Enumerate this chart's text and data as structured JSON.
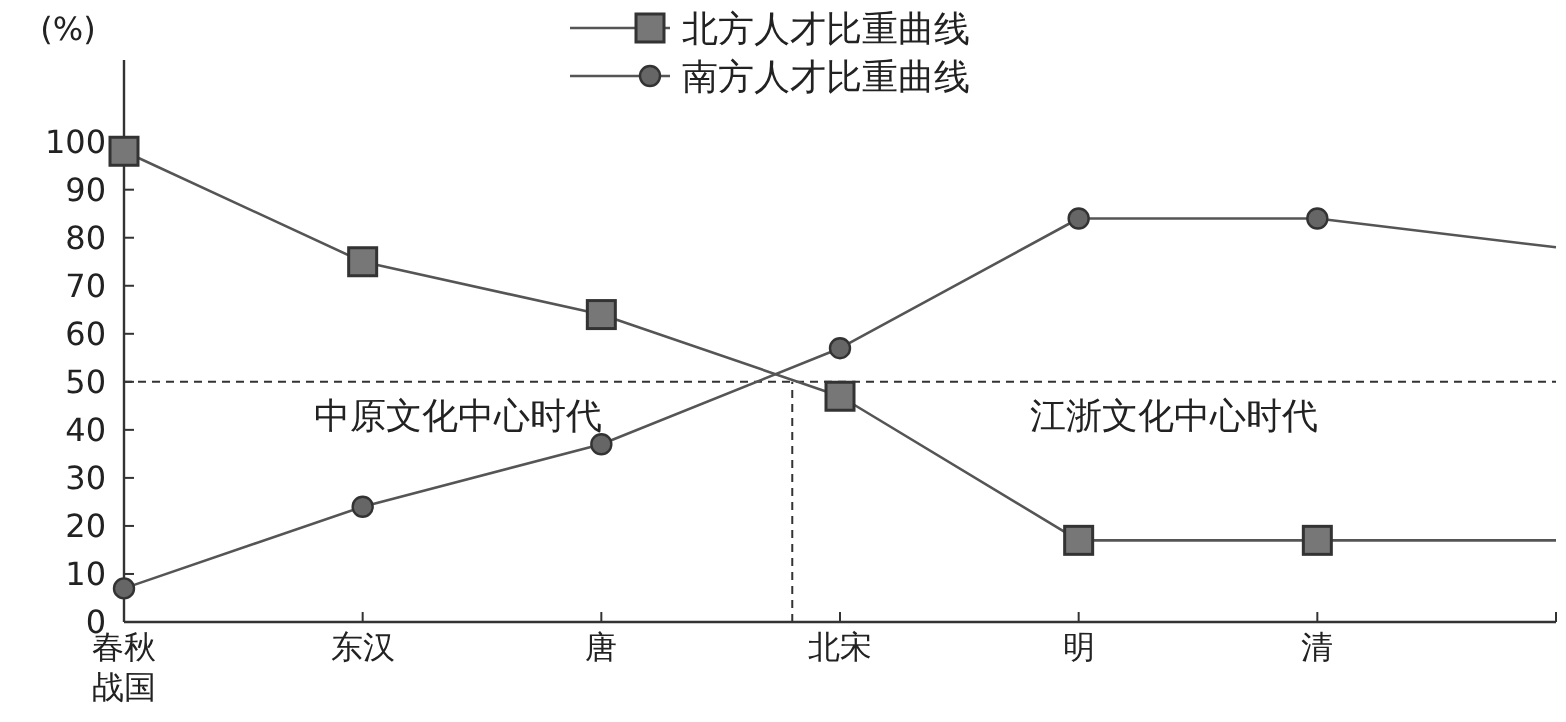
{
  "chart_data": {
    "type": "line",
    "ylabel": "(%)",
    "categories": [
      "春秋战国",
      "东汉",
      "唐",
      "北宋",
      "明",
      "清",
      null
    ],
    "ylim": [
      0,
      117
    ],
    "yticks": [
      0,
      10,
      20,
      30,
      40,
      50,
      60,
      70,
      80,
      90,
      100
    ],
    "series": [
      {
        "name": "北方人才比重曲线",
        "color": "#555555",
        "marker": "square",
        "values": [
          98,
          75,
          64,
          47,
          17,
          17,
          17
        ]
      },
      {
        "name": "南方人才比重曲线",
        "color": "#555555",
        "marker": "circle",
        "values": [
          7,
          24,
          37,
          57,
          84,
          84,
          78
        ]
      }
    ],
    "ref_lines": [
      {
        "axis": "y",
        "value": 50,
        "line_style": "dashed",
        "color": "#333333"
      }
    ],
    "annotations": [
      "中原文化中心时代",
      "江浙文化中心时代"
    ],
    "legend": "top",
    "grid": false
  }
}
